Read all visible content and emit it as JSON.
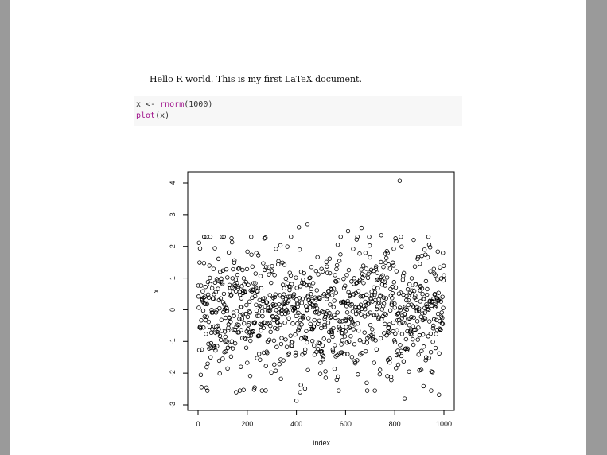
{
  "document": {
    "intro_text": "Hello R world. This is my first LaTeX document.",
    "code": {
      "line1": {
        "var": "x",
        "op": " <- ",
        "fn": "rnorm",
        "args": "(1000)"
      },
      "line2": {
        "fn": "plot",
        "args": "(x)"
      }
    }
  },
  "chart_data": {
    "type": "scatter",
    "title": "",
    "xlabel": "Index",
    "ylabel": "x",
    "xlim": [
      0,
      1000
    ],
    "ylim": [
      -3,
      4
    ],
    "xticks": [
      0,
      200,
      400,
      600,
      800,
      1000
    ],
    "yticks": [
      -3,
      -2,
      -1,
      0,
      1,
      2,
      3,
      4
    ],
    "grid": false,
    "point_style": "open-circle",
    "n": 1000,
    "x": "Index 1..1000",
    "notable_points": [
      {
        "x": 820,
        "y": 4.07
      },
      {
        "x": 400,
        "y": -2.87
      },
      {
        "x": 840,
        "y": -2.8
      },
      {
        "x": 980,
        "y": -2.68
      },
      {
        "x": 415,
        "y": -2.6
      },
      {
        "x": 155,
        "y": -2.6
      },
      {
        "x": 230,
        "y": -2.45
      },
      {
        "x": 445,
        "y": 2.7
      },
      {
        "x": 665,
        "y": 2.58
      },
      {
        "x": 410,
        "y": 2.6
      },
      {
        "x": 610,
        "y": 2.48
      },
      {
        "x": 745,
        "y": 2.35
      },
      {
        "x": 270,
        "y": 2.25
      },
      {
        "x": 940,
        "y": 2.05
      }
    ]
  }
}
